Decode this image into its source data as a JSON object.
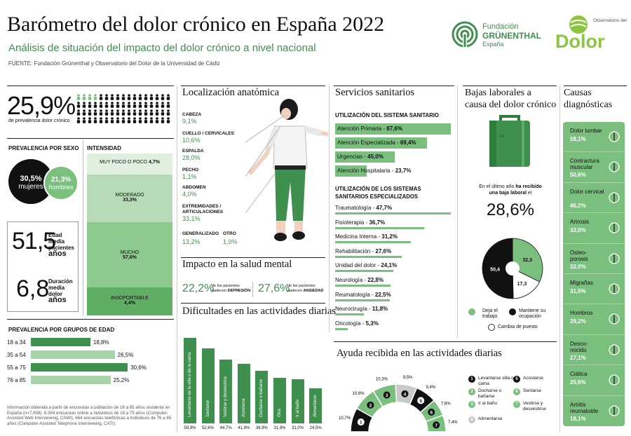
{
  "header": {
    "title": "Barómetro del dolor crónico en España 2022",
    "subtitle": "Análisis de situación del impacto del dolor crónico a nivel nacional",
    "source": "FUENTE: Fundación Grünenthal y Observatorio del Dolor de la Universidad de Cádiz",
    "logo1_line1": "Fundación",
    "logo1_line2": "GRÜNENTHAL",
    "logo1_line3": "España",
    "logo2_top": "Observatorio del",
    "logo2_main": "Dolor"
  },
  "prevalence": {
    "value": "25,9%",
    "label": "de prevalencia dolor crónico",
    "by_sex_title": "PREVALENCIA POR SEXO",
    "women_value": "30,5%",
    "women_label": "mujeres",
    "men_value": "21,3%",
    "men_label": "hombres",
    "age_value": "51,5",
    "age_label1": "Edad media",
    "age_label2": "pacientes",
    "age_unit": "años",
    "duration_value": "6,8",
    "duration_label1": "Duración",
    "duration_label2": "media dolor",
    "duration_unit": "años"
  },
  "intensity": {
    "title": "INTENSIDAD",
    "levels": [
      {
        "label": "MUY POCO O POCO",
        "value": "4,7%",
        "color": "#dff0df"
      },
      {
        "label": "MODERADO",
        "value": "33,3%",
        "color": "#b6dbb6"
      },
      {
        "label": "MUCHO",
        "value": "57,6%",
        "color": "#8ec98f"
      },
      {
        "label": "INSOPORTABLE",
        "value": "4,4%",
        "color": "#5fae64"
      }
    ]
  },
  "age_groups": {
    "title": "PREVALENCIA POR GRUPOS DE EDAD",
    "rows": [
      {
        "label": "18 a 34",
        "value": "18,8%",
        "num": 18.8,
        "color": "#3f8f4f"
      },
      {
        "label": "35 a 54",
        "value": "26,5%",
        "num": 26.5,
        "color": "#a8d3a8"
      },
      {
        "label": "55 a 75",
        "value": "30,6%",
        "num": 30.6,
        "color": "#3f8f4f"
      },
      {
        "label": "76 a 85",
        "value": "25,2%",
        "num": 25.2,
        "color": "#a8d3a8"
      }
    ]
  },
  "footnote": "Información obtenida a partir de encuestas a población de 18 a 85 años residente en España (n=7.058). 6.394 encuestas online a individuos de 18 a 75 años (Computer-Assisted Web Interviewing, CAWI), 664 encuestas telefónicas a individuos de 76 a 85 años (Computer-Assisted Telephone Interviewing, CATI).",
  "anatomy": {
    "title": "Localización anatómica",
    "items": [
      {
        "label": "CABEZA",
        "value": "9,1%"
      },
      {
        "label": "CUELLO / CERVICALES",
        "value": "10,6%"
      },
      {
        "label": "ESPALDA",
        "value": "28,0%"
      },
      {
        "label": "PECHO",
        "value": "1,1%"
      },
      {
        "label": "ABDOMEN",
        "value": "4,0%"
      },
      {
        "label": "EXTREMIDADES / ARTICULACIONES",
        "value": "33,1%"
      }
    ],
    "generalizado_label": "GENERALIZADO",
    "generalizado_value": "13,2%",
    "otro_label": "OTRO",
    "otro_value": "1,0%"
  },
  "mental": {
    "title": "Impacto en la salud mental",
    "dep_value": "22,2%",
    "dep_text1": "de los pacientes",
    "dep_text2": "padecen",
    "dep_text3": "DEPRESIÓN",
    "anx_value": "27,6%",
    "anx_text1": "de los pacientes",
    "anx_text2": "padecen",
    "anx_text3": "ANSIEDAD"
  },
  "difficulties": {
    "title": "Dificultades en las actividades diarias",
    "bars": [
      {
        "label": "Levantarse de la silla o de la cama",
        "value": "59,9%",
        "num": 59.9
      },
      {
        "label": "Sentarse",
        "value": "52,6%",
        "num": 52.6
      },
      {
        "label": "Vestirse y desvestirse",
        "value": "44,7%",
        "num": 44.7
      },
      {
        "label": "Acostarse",
        "value": "41,9%",
        "num": 41.9
      },
      {
        "label": "Ducharse o bañarse",
        "value": "36,9%",
        "num": 36.9
      },
      {
        "label": "Otra",
        "value": "31,9%",
        "num": 31.9
      },
      {
        "label": "Ir al baño",
        "value": "31,0%",
        "num": 31.0
      },
      {
        "label": "Alimentarse",
        "value": "24,5%",
        "num": 24.5
      }
    ]
  },
  "services": {
    "title": "Servicios sanitarios",
    "use_title": "UTILIZACIÓN DEL SISTEMA SANITARIO",
    "use": [
      {
        "label": "Atención Primaria - ",
        "value": "87,6%",
        "num": 87.6
      },
      {
        "label": "Atención Especializada - ",
        "value": "69,4%",
        "num": 69.4
      },
      {
        "label": "Urgencias - ",
        "value": "45,0%",
        "num": 45.0
      },
      {
        "label": "Atención Hospitalaria - ",
        "value": "23,7%",
        "num": 23.7
      }
    ],
    "spec_title1": "UTILIZACIÓN DE LOS SISTEMAS",
    "spec_title2": "SANITARIOS ESPECIALIZADOS",
    "spec": [
      {
        "label": "Traumatología - ",
        "value": "47,7%",
        "num": 47.7
      },
      {
        "label": "Fisioterapia - ",
        "value": "36,7%",
        "num": 36.7
      },
      {
        "label": "Medicina Interna - ",
        "value": "31,2%",
        "num": 31.2
      },
      {
        "label": "Rehabilitación - ",
        "value": "27,6%",
        "num": 27.6
      },
      {
        "label": "Unidad del dolor - ",
        "value": "24,1%",
        "num": 24.1
      },
      {
        "label": "Neurología - ",
        "value": "22,8%",
        "num": 22.8
      },
      {
        "label": "Reumatología - ",
        "value": "22,5%",
        "num": 22.5
      },
      {
        "label": "Neurocirugía - ",
        "value": "11,8%",
        "num": 11.8
      },
      {
        "label": "Oncología - ",
        "value": "5,3%",
        "num": 5.3
      }
    ]
  },
  "leave": {
    "title1": "Bajas laborales a",
    "title2": "causa del dolor crónico",
    "text1": "En el último año",
    "text2": "ha recibido",
    "text3": "una baja laboral",
    "text4": "el",
    "value": "28,6%",
    "pie": [
      {
        "name": "Deja el trabajo",
        "value": 32.3,
        "label": "32,3",
        "color": "#7bbf7f"
      },
      {
        "name": "Cambia de puesto",
        "value": 17.3,
        "label": "17,3",
        "color": "#ffffff"
      },
      {
        "name": "Mantiene su ocupación",
        "value": 50.4,
        "label": "50,4",
        "color": "#111111"
      }
    ],
    "legend_deja": "Deja el trabajo",
    "legend_mantiene": "Mantiene su ocupación",
    "legend_cambia": "Cambia de puesto"
  },
  "causes": {
    "title1": "Causas",
    "title2": "diagnósticas",
    "items": [
      {
        "label": "Dolor lumbar",
        "value": "58,1%",
        "icon": "spine-icon"
      },
      {
        "label": "Contractura muscular",
        "value": "50,6%",
        "icon": "muscle-icon"
      },
      {
        "label": "Dolor cervical",
        "value": "46,2%",
        "icon": "neck-icon"
      },
      {
        "label": "Artrosis",
        "value": "33,0%",
        "icon": "joint-icon"
      },
      {
        "label": "Osteo- porosis",
        "value": "32,9%",
        "icon": "pelvis-icon"
      },
      {
        "label": "Migrañas",
        "value": "31,5%",
        "icon": "head-icon"
      },
      {
        "label": "Hombros",
        "value": "29,2%",
        "icon": "shoulder-icon"
      },
      {
        "label": "Desco- nocido",
        "value": "27,1%",
        "icon": "bulb-icon"
      },
      {
        "label": "Ciática",
        "value": "25,6%",
        "icon": "leg-icon"
      },
      {
        "label": "Artritis reumatoide",
        "value": "18,1%",
        "icon": "hand-icon"
      }
    ]
  },
  "help": {
    "title": "Ayuda recibida en las actividades diarias",
    "arc": [
      {
        "num": 10.7,
        "label": "10,7%",
        "key": "1",
        "color": "#111111"
      },
      {
        "num": 10.6,
        "label": "10,6%",
        "key": "2",
        "color": "#7bbf7f"
      },
      {
        "num": 10.3,
        "label": "10,3%",
        "key": "3",
        "color": "#7bbf7f"
      },
      {
        "num": 9.5,
        "label": "9,5%",
        "key": "4",
        "color": "#c9c9c9"
      },
      {
        "num": 9.4,
        "label": "9,4%",
        "key": "5",
        "color": "#111111"
      },
      {
        "num": 7.6,
        "label": "7,6%",
        "key": "6",
        "color": "#7bbf7f"
      },
      {
        "num": 7.4,
        "label": "7,4%",
        "key": "7",
        "color": "#7bbf7f"
      }
    ],
    "legend": [
      {
        "key": "1",
        "label": "Levantarse silla o cama"
      },
      {
        "key": "5",
        "label": "Acostarse"
      },
      {
        "key": "2",
        "label": "Ducharse o bañarse"
      },
      {
        "key": "6",
        "label": "Sentarse"
      },
      {
        "key": "3",
        "label": "Ir al baño"
      },
      {
        "key": "7",
        "label": "Vestirse y desvestirse"
      },
      {
        "key": "4",
        "label": "Alimentarse"
      }
    ]
  },
  "chart_data": [
    {
      "type": "bar",
      "title": "PREVALENCIA POR GRUPOS DE EDAD",
      "categories": [
        "18 a 34",
        "35 a 54",
        "55 a 75",
        "76 a 85"
      ],
      "values": [
        18.8,
        26.5,
        30.6,
        25.2
      ]
    },
    {
      "type": "bar",
      "title": "Dificultades en las actividades diarias",
      "categories": [
        "Levantarse de la silla o de la cama",
        "Sentarse",
        "Vestirse y desvestirse",
        "Acostarse",
        "Ducharse o bañarse",
        "Otra",
        "Ir al baño",
        "Alimentarse"
      ],
      "values": [
        59.9,
        52.6,
        44.7,
        41.9,
        36.9,
        31.9,
        31.0,
        24.5
      ]
    },
    {
      "type": "bar",
      "title": "UTILIZACIÓN DEL SISTEMA SANITARIO",
      "categories": [
        "Atención Primaria",
        "Atención Especializada",
        "Urgencias",
        "Atención Hospitalaria"
      ],
      "values": [
        87.6,
        69.4,
        45.0,
        23.7
      ]
    },
    {
      "type": "bar",
      "title": "UTILIZACIÓN DE LOS SISTEMAS SANITARIOS ESPECIALIZADOS",
      "categories": [
        "Traumatología",
        "Fisioterapia",
        "Medicina Interna",
        "Rehabilitación",
        "Unidad del dolor",
        "Neurología",
        "Reumatología",
        "Neurocirugía",
        "Oncología"
      ],
      "values": [
        47.7,
        36.7,
        31.2,
        27.6,
        24.1,
        22.8,
        22.5,
        11.8,
        5.3
      ]
    },
    {
      "type": "pie",
      "title": "Bajas laborales a causa del dolor crónico",
      "categories": [
        "Deja el trabajo",
        "Cambia de puesto",
        "Mantiene su ocupación"
      ],
      "values": [
        32.3,
        17.3,
        50.4
      ]
    },
    {
      "type": "bar",
      "title": "Causas diagnósticas",
      "categories": [
        "Dolor lumbar",
        "Contractura muscular",
        "Dolor cervical",
        "Artrosis",
        "Osteoporosis",
        "Migrañas",
        "Hombros",
        "Desconocido",
        "Ciática",
        "Artritis reumatoide"
      ],
      "values": [
        58.1,
        50.6,
        46.2,
        33.0,
        32.9,
        31.5,
        29.2,
        27.1,
        25.6,
        18.1
      ]
    },
    {
      "type": "bar",
      "title": "Ayuda recibida en las actividades diarias",
      "categories": [
        "Levantarse silla o cama",
        "Ducharse o bañarse",
        "Ir al baño",
        "Alimentarse",
        "Acostarse",
        "Sentarse",
        "Vestirse y desvestirse"
      ],
      "values": [
        10.7,
        10.6,
        10.3,
        9.5,
        9.4,
        7.6,
        7.4
      ]
    }
  ]
}
